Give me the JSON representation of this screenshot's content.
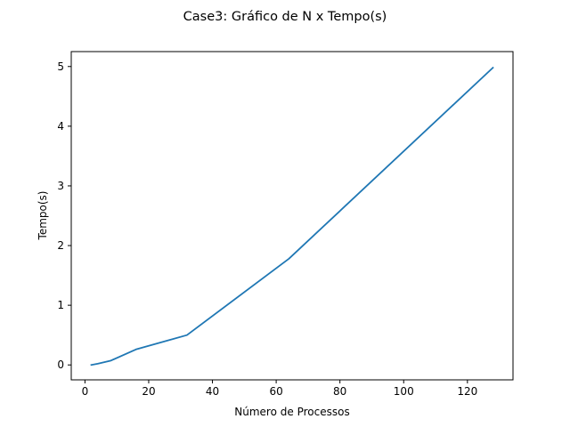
{
  "chart_data": {
    "type": "line",
    "title": "Case3: Gráfico de N x Tempo(s)",
    "xlabel": "Número de Processos",
    "ylabel": "Tempo(s)",
    "xlim": [
      -4.3,
      134.3
    ],
    "ylim": [
      -0.25,
      5.25
    ],
    "xticks": [
      0,
      20,
      40,
      60,
      80,
      100,
      120
    ],
    "yticks": [
      0,
      1,
      2,
      3,
      4,
      5
    ],
    "grid": false,
    "series": [
      {
        "color": "#1f77b4",
        "x": [
          2,
          4,
          8,
          16,
          32,
          64,
          128
        ],
        "y": [
          0.0,
          0.02,
          0.07,
          0.26,
          0.5,
          1.78,
          4.98
        ]
      }
    ]
  }
}
